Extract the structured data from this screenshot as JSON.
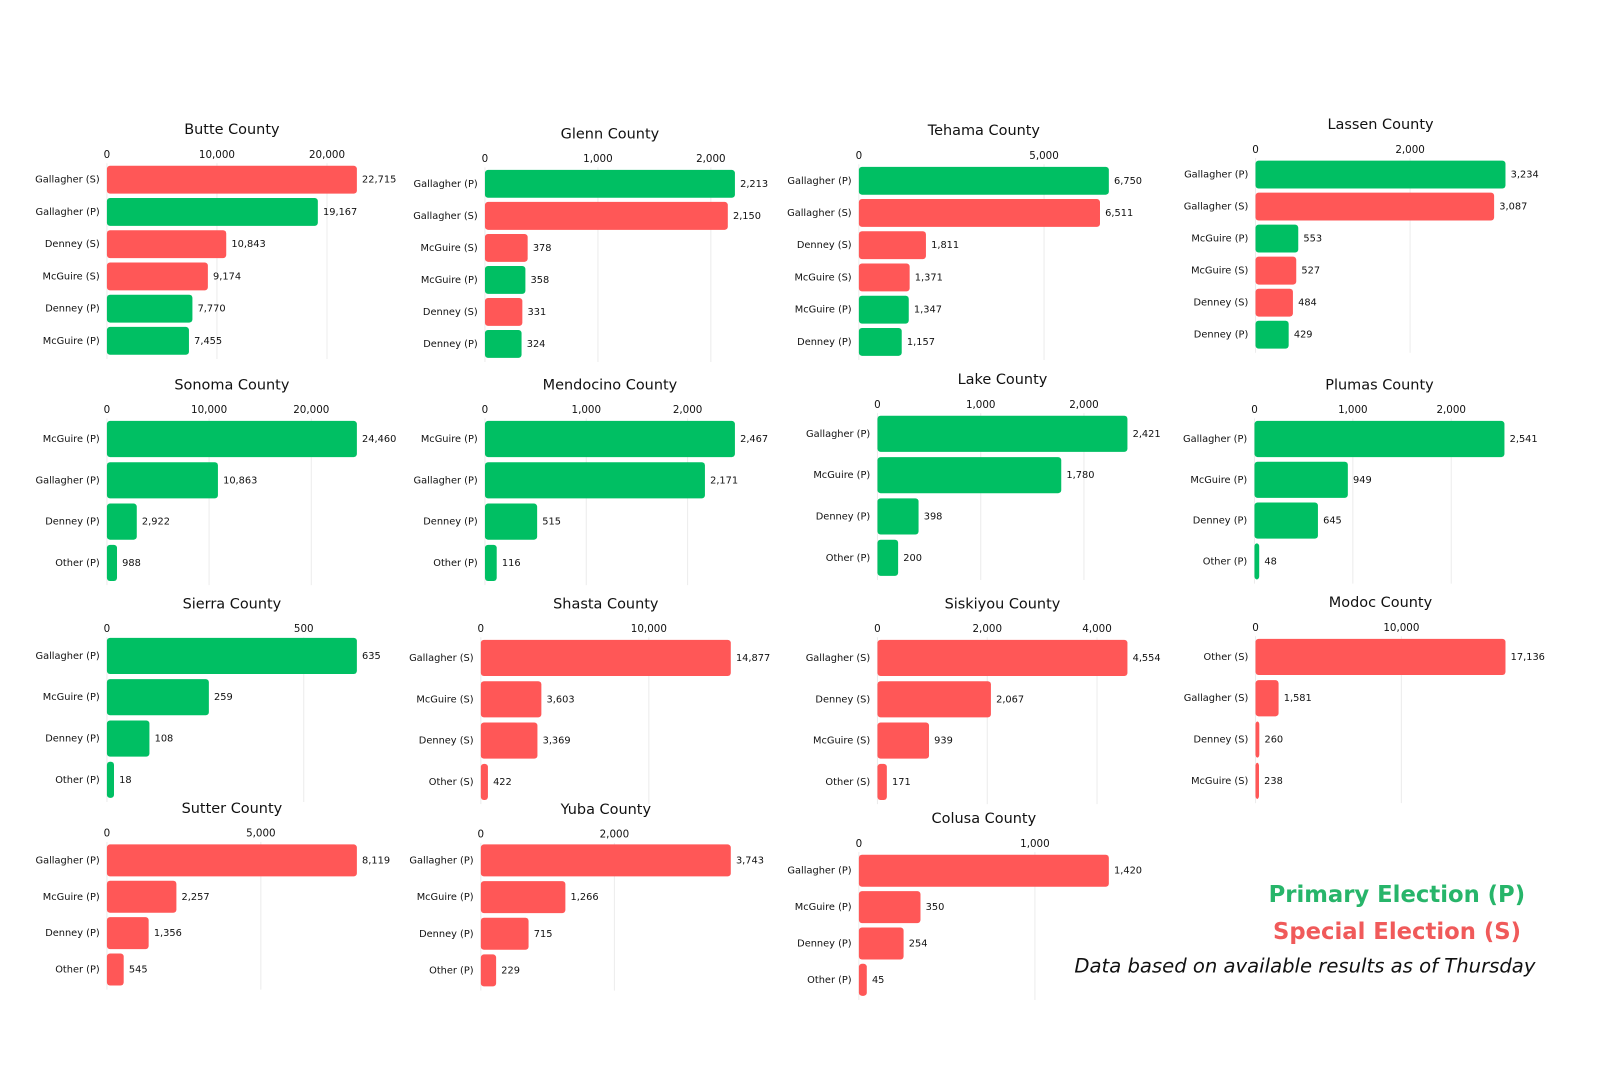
{
  "chart_data": [
    {
      "type": "bar",
      "orientation": "horizontal",
      "title": "Butte County",
      "categories": [
        "Gallagher (S)",
        "Gallagher (P)",
        "Denney (S)",
        "McGuire (S)",
        "Denney (P)",
        "McGuire (P)"
      ],
      "values": [
        22715,
        19167,
        10843,
        9174,
        7770,
        7455
      ],
      "value_labels": [
        "22,715",
        "19,167",
        "10,843",
        "9,174",
        "7,770",
        "7,455"
      ],
      "colors": [
        "#ff5757",
        "#00bf63",
        "#ff5757",
        "#ff5757",
        "#00bf63",
        "#00bf63"
      ],
      "xlim": [
        0,
        22715
      ],
      "xticks": [
        0,
        {
          "value": 10000,
          "label": "10,000"
        },
        {
          "value": 20000,
          "label": "20,000"
        }
      ],
      "grid": true
    },
    {
      "type": "bar",
      "orientation": "horizontal",
      "title": "Glenn County",
      "categories": [
        "Gallagher (P)",
        "Gallagher (S)",
        "McGuire (S)",
        "McGuire (P)",
        "Denney (S)",
        "Denney (P)"
      ],
      "values": [
        2213,
        2150,
        378,
        358,
        331,
        324
      ],
      "value_labels": [
        "2,213",
        "2,150",
        "378",
        "358",
        "331",
        "324"
      ],
      "colors": [
        "#00bf63",
        "#ff5757",
        "#ff5757",
        "#00bf63",
        "#ff5757",
        "#00bf63"
      ],
      "xlim": [
        0,
        2213
      ],
      "xticks": [
        0,
        {
          "value": 1000,
          "label": "1,000"
        },
        {
          "value": 2000,
          "label": "2,000"
        }
      ],
      "grid": true
    },
    {
      "type": "bar",
      "orientation": "horizontal",
      "title": "Tehama County",
      "categories": [
        "Gallagher (P)",
        "Gallagher (S)",
        "Denney (S)",
        "McGuire (S)",
        "McGuire (P)",
        "Denney (P)"
      ],
      "values": [
        6750,
        6511,
        1811,
        1371,
        1347,
        1157
      ],
      "value_labels": [
        "6,750",
        "6,511",
        "1,811",
        "1,371",
        "1,347",
        "1,157"
      ],
      "colors": [
        "#00bf63",
        "#ff5757",
        "#ff5757",
        "#ff5757",
        "#00bf63",
        "#00bf63"
      ],
      "xlim": [
        0,
        6750
      ],
      "xticks": [
        0,
        {
          "value": 5000,
          "label": "5,000"
        }
      ],
      "grid": true
    },
    {
      "type": "bar",
      "orientation": "horizontal",
      "title": "Lassen County",
      "categories": [
        "Gallagher (P)",
        "Gallagher (S)",
        "McGuire (P)",
        "McGuire (S)",
        "Denney (S)",
        "Denney (P)"
      ],
      "values": [
        3234,
        3087,
        553,
        527,
        484,
        429
      ],
      "value_labels": [
        "3,234",
        "3,087",
        "553",
        "527",
        "484",
        "429"
      ],
      "colors": [
        "#00bf63",
        "#ff5757",
        "#00bf63",
        "#ff5757",
        "#ff5757",
        "#00bf63"
      ],
      "xlim": [
        0,
        3234
      ],
      "xticks": [
        0,
        {
          "value": 2000,
          "label": "2,000"
        }
      ],
      "grid": true
    },
    {
      "type": "bar",
      "orientation": "horizontal",
      "title": "Sonoma County",
      "categories": [
        "McGuire (P)",
        "Gallagher (P)",
        "Denney (P)",
        "Other (P)"
      ],
      "values": [
        24460,
        10863,
        2922,
        988
      ],
      "value_labels": [
        "24,460",
        "10,863",
        "2,922",
        "988"
      ],
      "colors": [
        "#00bf63",
        "#00bf63",
        "#00bf63",
        "#00bf63"
      ],
      "xlim": [
        0,
        24460
      ],
      "xticks": [
        0,
        {
          "value": 10000,
          "label": "10,000"
        },
        {
          "value": 20000,
          "label": "20,000"
        }
      ],
      "grid": true
    },
    {
      "type": "bar",
      "orientation": "horizontal",
      "title": "Mendocino County",
      "categories": [
        "McGuire (P)",
        "Gallagher (P)",
        "Denney (P)",
        "Other (P)"
      ],
      "values": [
        2467,
        2171,
        515,
        116
      ],
      "value_labels": [
        "2,467",
        "2,171",
        "515",
        "116"
      ],
      "colors": [
        "#00bf63",
        "#00bf63",
        "#00bf63",
        "#00bf63"
      ],
      "xlim": [
        0,
        2467
      ],
      "xticks": [
        0,
        {
          "value": 1000,
          "label": "1,000"
        },
        {
          "value": 2000,
          "label": "2,000"
        }
      ],
      "grid": true
    },
    {
      "type": "bar",
      "orientation": "horizontal",
      "title": "Lake County",
      "categories": [
        "Gallagher (P)",
        "McGuire (P)",
        "Denney (P)",
        "Other (P)"
      ],
      "values": [
        2421,
        1780,
        398,
        200
      ],
      "value_labels": [
        "2,421",
        "1,780",
        "398",
        "200"
      ],
      "colors": [
        "#00bf63",
        "#00bf63",
        "#00bf63",
        "#00bf63"
      ],
      "xlim": [
        0,
        2421
      ],
      "xticks": [
        0,
        {
          "value": 1000,
          "label": "1,000"
        },
        {
          "value": 2000,
          "label": "2,000"
        }
      ],
      "grid": true
    },
    {
      "type": "bar",
      "orientation": "horizontal",
      "title": "Plumas County",
      "categories": [
        "Gallagher (P)",
        "McGuire (P)",
        "Denney (P)",
        "Other (P)"
      ],
      "values": [
        2541,
        949,
        645,
        48
      ],
      "value_labels": [
        "2,541",
        "949",
        "645",
        "48"
      ],
      "colors": [
        "#00bf63",
        "#00bf63",
        "#00bf63",
        "#00bf63"
      ],
      "xlim": [
        0,
        2541
      ],
      "xticks": [
        0,
        {
          "value": 1000,
          "label": "1,000"
        },
        {
          "value": 2000,
          "label": "2,000"
        }
      ],
      "grid": true
    },
    {
      "type": "bar",
      "orientation": "horizontal",
      "title": "Sierra County",
      "categories": [
        "Gallagher (P)",
        "McGuire (P)",
        "Denney (P)",
        "Other (P)"
      ],
      "values": [
        635,
        259,
        108,
        18
      ],
      "colors": [
        "#00bf63",
        "#00bf63",
        "#00bf63",
        "#00bf63"
      ],
      "xlim": [
        0,
        635
      ],
      "xticks": [
        0,
        500
      ],
      "grid": true
    },
    {
      "type": "bar",
      "orientation": "horizontal",
      "title": "Shasta County",
      "categories": [
        "Gallagher (S)",
        "McGuire (S)",
        "Denney (S)",
        "Other (S)"
      ],
      "values": [
        14877,
        3603,
        3369,
        422
      ],
      "value_labels": [
        "14,877",
        "3,603",
        "3,369",
        "422"
      ],
      "colors": [
        "#ff5757",
        "#ff5757",
        "#ff5757",
        "#ff5757"
      ],
      "xlim": [
        0,
        14877
      ],
      "xticks": [
        0,
        {
          "value": 10000,
          "label": "10,000"
        }
      ],
      "grid": true
    },
    {
      "type": "bar",
      "orientation": "horizontal",
      "title": "Siskiyou County",
      "categories": [
        "Gallagher (S)",
        "Denney (S)",
        "McGuire (S)",
        "Other (S)"
      ],
      "values": [
        4554,
        2067,
        939,
        171
      ],
      "value_labels": [
        "4,554",
        "2,067",
        "939",
        "171"
      ],
      "colors": [
        "#ff5757",
        "#ff5757",
        "#ff5757",
        "#ff5757"
      ],
      "xlim": [
        0,
        4554
      ],
      "xticks": [
        0,
        {
          "value": 2000,
          "label": "2,000"
        },
        {
          "value": 4000,
          "label": "4,000"
        }
      ],
      "grid": true
    },
    {
      "type": "bar",
      "orientation": "horizontal",
      "title": "Modoc County",
      "categories": [
        "Other (S)",
        "Gallagher (S)",
        "Denney (S)",
        "McGuire (S)"
      ],
      "values": [
        17136,
        1581,
        260,
        238
      ],
      "value_labels": [
        "17,136",
        "1,581",
        "260",
        "238"
      ],
      "colors": [
        "#ff5757",
        "#ff5757",
        "#ff5757",
        "#ff5757"
      ],
      "xlim": [
        0,
        17136
      ],
      "xticks": [
        0,
        {
          "value": 10000,
          "label": "10,000"
        }
      ],
      "grid": true
    },
    {
      "type": "bar",
      "orientation": "horizontal",
      "title": "Sutter County",
      "categories": [
        "Gallagher (P)",
        "McGuire (P)",
        "Denney (P)",
        "Other (P)"
      ],
      "values": [
        8119,
        2257,
        1356,
        545
      ],
      "value_labels": [
        "8,119",
        "2,257",
        "1,356",
        "545"
      ],
      "colors": [
        "#ff5757",
        "#ff5757",
        "#ff5757",
        "#ff5757"
      ],
      "xlim": [
        0,
        8119
      ],
      "xticks": [
        0,
        {
          "value": 5000,
          "label": "5,000"
        }
      ],
      "grid": true
    },
    {
      "type": "bar",
      "orientation": "horizontal",
      "title": "Yuba County",
      "categories": [
        "Gallagher (P)",
        "McGuire (P)",
        "Denney (P)",
        "Other (P)"
      ],
      "values": [
        3743,
        1266,
        715,
        229
      ],
      "value_labels": [
        "3,743",
        "1,266",
        "715",
        "229"
      ],
      "colors": [
        "#ff5757",
        "#ff5757",
        "#ff5757",
        "#ff5757"
      ],
      "xlim": [
        0,
        3743
      ],
      "xticks": [
        0,
        {
          "value": 2000,
          "label": "2,000"
        }
      ],
      "grid": true
    },
    {
      "type": "bar",
      "orientation": "horizontal",
      "title": "Colusa County",
      "categories": [
        "Gallagher (P)",
        "McGuire (P)",
        "Denney (P)",
        "Other (P)"
      ],
      "values": [
        1420,
        350,
        254,
        45
      ],
      "value_labels": [
        "1,420",
        "350",
        "254",
        "45"
      ],
      "colors": [
        "#ff5757",
        "#ff5757",
        "#ff5757",
        "#ff5757"
      ],
      "xlim": [
        0,
        1420
      ],
      "xticks": [
        0,
        {
          "value": 1000,
          "label": "1,000"
        }
      ],
      "grid": true
    }
  ],
  "legend": {
    "primary": "Primary Election (P)",
    "special": "Special Election (S)",
    "note": "Data based on available results as of Thursday"
  }
}
